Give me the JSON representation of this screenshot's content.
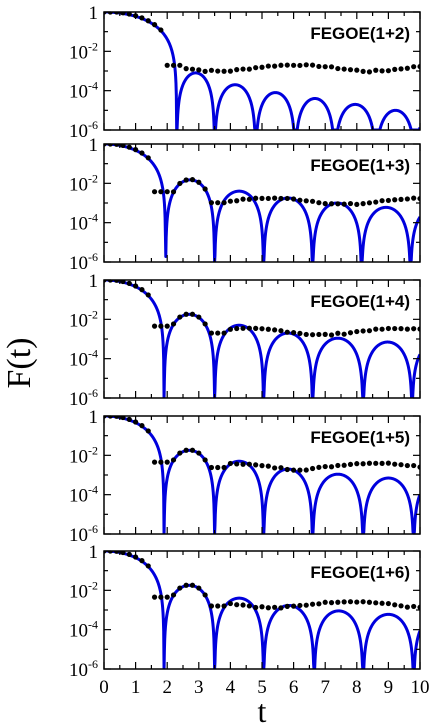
{
  "figure": {
    "ylabel": "F(t)",
    "xlabel": "t"
  },
  "chart_data": {
    "type": "line",
    "xlim": [
      0,
      10
    ],
    "ylim": [
      1e-06,
      1
    ],
    "yscale": "log",
    "x_ticks": [
      "0",
      "1",
      "2",
      "3",
      "4",
      "5",
      "6",
      "7",
      "8",
      "9",
      "10"
    ],
    "y_ticks": [
      {
        "base": "1",
        "exp": ""
      },
      {
        "base": "10",
        "exp": "-2"
      },
      {
        "base": "10",
        "exp": "-4"
      },
      {
        "base": "10",
        "exp": "-6"
      }
    ],
    "colors": {
      "curve": "#0000dd",
      "dots": "#000000"
    },
    "panels": [
      {
        "label": "FEGOE(1+2)",
        "curve_zeros": [
          2.3,
          3.5,
          4.8,
          6.05,
          7.3,
          8.6,
          9.85
        ],
        "curve_peaks": [
          0.0008,
          0.0002,
          8e-05,
          4e-05,
          2e-05,
          1e-05
        ],
        "dots_plateau": 0.0015
      },
      {
        "label": "FEGOE(1+3)",
        "curve_zeros": [
          1.95,
          3.5,
          5.05,
          6.6,
          8.15,
          9.7
        ],
        "curve_peaks": [
          0.015,
          0.004,
          0.0018,
          0.001,
          0.0006
        ],
        "dots_plateau": 0.0013
      },
      {
        "label": "FEGOE(1+4)",
        "curve_zeros": [
          1.9,
          3.5,
          5.05,
          6.6,
          8.2,
          9.75
        ],
        "curve_peaks": [
          0.018,
          0.005,
          0.002,
          0.0011,
          0.0007
        ],
        "dots_plateau": 0.0025
      },
      {
        "label": "FEGOE(1+5)",
        "curve_zeros": [
          1.9,
          3.5,
          5.05,
          6.6,
          8.2,
          9.8
        ],
        "curve_peaks": [
          0.018,
          0.005,
          0.002,
          0.0011,
          0.0007
        ],
        "dots_plateau": 0.003
      },
      {
        "label": "FEGOE(1+6)",
        "curve_zeros": [
          1.9,
          3.5,
          5.05,
          6.65,
          8.2,
          9.8
        ],
        "curve_peaks": [
          0.018,
          0.004,
          0.0017,
          0.0009,
          0.0006
        ],
        "dots_plateau": 0.002
      }
    ]
  }
}
